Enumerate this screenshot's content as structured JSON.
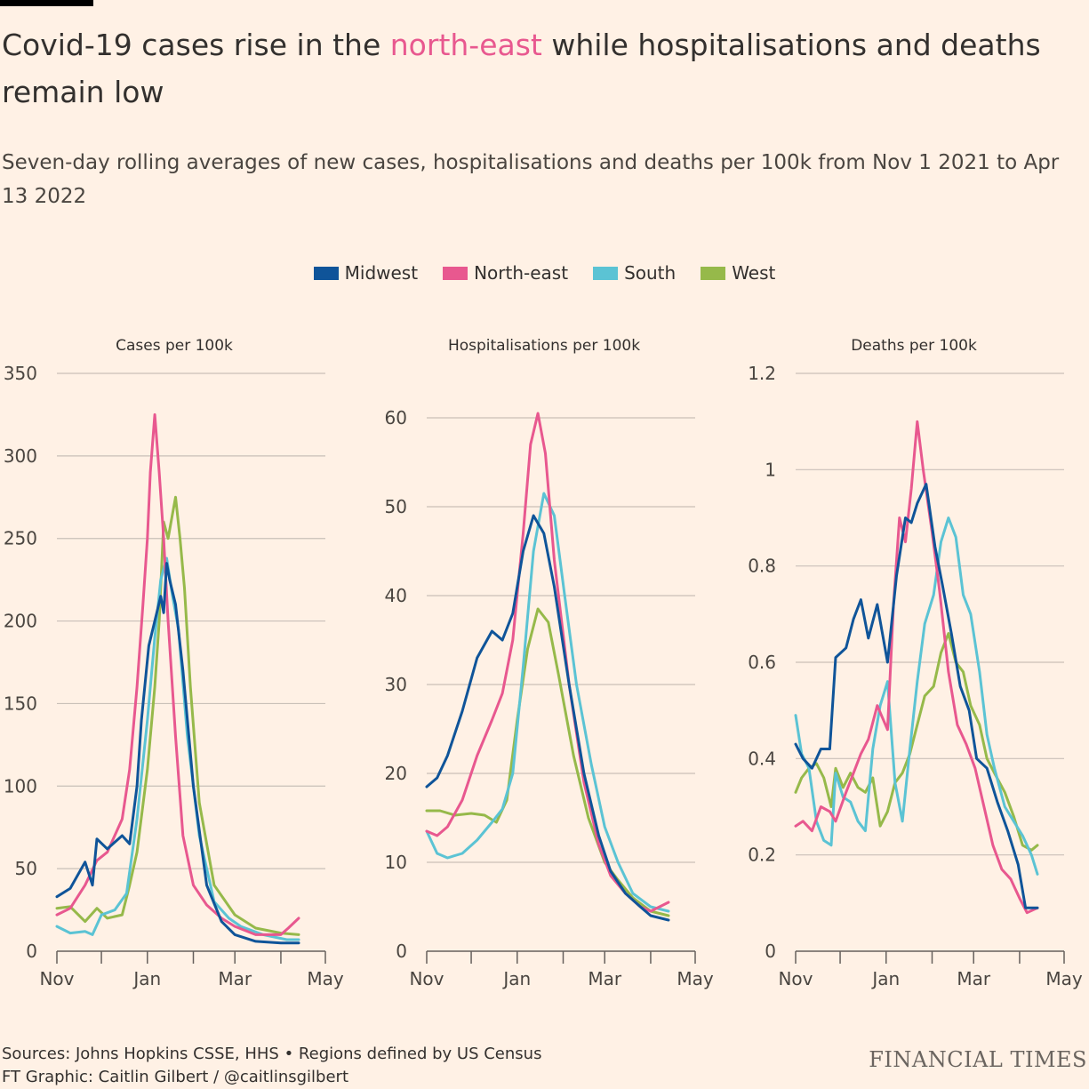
{
  "header": {
    "title_before": "Covid-19 cases rise in the ",
    "title_highlight": "north-east",
    "title_after": " while hospitalisations and deaths remain low",
    "subtitle": "Seven-day rolling averages of new cases, hospitalisations and deaths per 100k from Nov 1 2021 to Apr 13 2022"
  },
  "legend": [
    {
      "name": "Midwest",
      "color": "#0f5499"
    },
    {
      "name": "North-east",
      "color": "#e8588f"
    },
    {
      "name": "South",
      "color": "#5bc3d4"
    },
    {
      "name": "West",
      "color": "#96b94a"
    }
  ],
  "footer": {
    "sources": "Sources: Johns Hopkins CSSE, HHS • Regions defined by US Census",
    "credit": "FT Graphic: Caitlin Gilbert / @caitlinsgilbert",
    "brand": "FINANCIAL TIMES"
  },
  "chart_data": [
    {
      "type": "line",
      "title": "Cases per 100k",
      "x_ticks": [
        "Nov",
        "Jan",
        "Mar",
        "May"
      ],
      "x_tick_dates": [
        "2021-11-01",
        "2022-01-01",
        "2022-03-01",
        "2022-05-01"
      ],
      "ylim": [
        0,
        350
      ],
      "y_ticks": [
        0,
        50,
        100,
        150,
        200,
        250,
        300,
        350
      ],
      "grid": true,
      "series": [
        {
          "name": "Midwest",
          "x": [
            "2021-11-01",
            "2021-11-10",
            "2021-11-20",
            "2021-11-25",
            "2021-11-28",
            "2021-12-05",
            "2021-12-15",
            "2021-12-20",
            "2021-12-25",
            "2021-12-28",
            "2022-01-02",
            "2022-01-06",
            "2022-01-10",
            "2022-01-12",
            "2022-01-14",
            "2022-01-16",
            "2022-01-20",
            "2022-01-25",
            "2022-02-01",
            "2022-02-10",
            "2022-02-20",
            "2022-03-01",
            "2022-03-15",
            "2022-04-01",
            "2022-04-13"
          ],
          "y": [
            33,
            38,
            54,
            40,
            68,
            62,
            70,
            65,
            100,
            140,
            185,
            200,
            215,
            205,
            235,
            225,
            210,
            170,
            100,
            40,
            18,
            10,
            6,
            5,
            5
          ]
        },
        {
          "name": "North-east",
          "x": [
            "2021-11-01",
            "2021-11-10",
            "2021-11-20",
            "2021-11-28",
            "2021-12-05",
            "2021-12-15",
            "2021-12-20",
            "2021-12-25",
            "2021-12-29",
            "2022-01-01",
            "2022-01-03",
            "2022-01-06",
            "2022-01-09",
            "2022-01-12",
            "2022-01-15",
            "2022-01-20",
            "2022-01-25",
            "2022-02-01",
            "2022-02-10",
            "2022-02-20",
            "2022-03-01",
            "2022-03-15",
            "2022-04-01",
            "2022-04-06",
            "2022-04-13"
          ],
          "y": [
            22,
            26,
            40,
            55,
            60,
            80,
            110,
            160,
            210,
            250,
            290,
            325,
            290,
            250,
            200,
            130,
            70,
            40,
            28,
            20,
            15,
            10,
            10,
            14,
            20
          ]
        },
        {
          "name": "South",
          "x": [
            "2021-11-01",
            "2021-11-10",
            "2021-11-20",
            "2021-11-25",
            "2021-12-01",
            "2021-12-10",
            "2021-12-18",
            "2021-12-25",
            "2022-01-01",
            "2022-01-06",
            "2022-01-10",
            "2022-01-14",
            "2022-01-18",
            "2022-01-22",
            "2022-01-28",
            "2022-02-05",
            "2022-02-15",
            "2022-02-25",
            "2022-03-05",
            "2022-03-20",
            "2022-04-05",
            "2022-04-13"
          ],
          "y": [
            15,
            11,
            12,
            10,
            22,
            25,
            35,
            80,
            140,
            190,
            225,
            238,
            215,
            195,
            130,
            70,
            30,
            20,
            15,
            10,
            7,
            7
          ]
        },
        {
          "name": "West",
          "x": [
            "2021-11-01",
            "2021-11-10",
            "2021-11-20",
            "2021-11-28",
            "2021-12-05",
            "2021-12-15",
            "2021-12-20",
            "2021-12-25",
            "2022-01-01",
            "2022-01-06",
            "2022-01-09",
            "2022-01-12",
            "2022-01-15",
            "2022-01-18",
            "2022-01-20",
            "2022-01-23",
            "2022-01-26",
            "2022-01-30",
            "2022-02-05",
            "2022-02-15",
            "2022-03-01",
            "2022-03-15",
            "2022-04-01",
            "2022-04-13"
          ],
          "y": [
            26,
            27,
            18,
            26,
            20,
            22,
            40,
            60,
            110,
            160,
            200,
            260,
            250,
            265,
            275,
            250,
            220,
            160,
            90,
            40,
            22,
            14,
            11,
            10
          ]
        }
      ]
    },
    {
      "type": "line",
      "title": "Hospitalisations per 100k",
      "x_ticks": [
        "Nov",
        "Jan",
        "Mar",
        "May"
      ],
      "x_tick_dates": [
        "2021-11-01",
        "2022-01-01",
        "2022-03-01",
        "2022-05-01"
      ],
      "ylim": [
        0,
        65
      ],
      "y_ticks": [
        0,
        10,
        20,
        30,
        40,
        50,
        60
      ],
      "grid": true,
      "series": [
        {
          "name": "Midwest",
          "x": [
            "2021-11-01",
            "2021-11-08",
            "2021-11-15",
            "2021-11-25",
            "2021-12-05",
            "2021-12-15",
            "2021-12-22",
            "2021-12-29",
            "2022-01-05",
            "2022-01-12",
            "2022-01-19",
            "2022-01-26",
            "2022-02-05",
            "2022-02-15",
            "2022-02-25",
            "2022-03-05",
            "2022-03-15",
            "2022-03-25",
            "2022-04-01",
            "2022-04-13"
          ],
          "y": [
            18.5,
            19.5,
            22,
            27,
            33,
            36,
            35,
            38,
            45,
            49,
            47,
            41,
            30,
            20,
            13,
            9,
            6.5,
            5,
            4,
            3.5
          ]
        },
        {
          "name": "North-east",
          "x": [
            "2021-11-01",
            "2021-11-08",
            "2021-11-15",
            "2021-11-25",
            "2021-12-05",
            "2021-12-15",
            "2021-12-22",
            "2021-12-29",
            "2022-01-05",
            "2022-01-10",
            "2022-01-15",
            "2022-01-20",
            "2022-01-26",
            "2022-02-05",
            "2022-02-15",
            "2022-02-25",
            "2022-03-05",
            "2022-03-15",
            "2022-03-25",
            "2022-04-01",
            "2022-04-13"
          ],
          "y": [
            13.5,
            13,
            14,
            17,
            22,
            26,
            29,
            35,
            47,
            57,
            60.5,
            56,
            44,
            30,
            19,
            12,
            8.5,
            6.5,
            5,
            4.5,
            5.5
          ]
        },
        {
          "name": "South",
          "x": [
            "2021-11-01",
            "2021-11-08",
            "2021-11-15",
            "2021-11-25",
            "2021-12-05",
            "2021-12-15",
            "2021-12-22",
            "2021-12-29",
            "2022-01-05",
            "2022-01-12",
            "2022-01-19",
            "2022-01-26",
            "2022-02-02",
            "2022-02-10",
            "2022-02-20",
            "2022-03-01",
            "2022-03-10",
            "2022-03-20",
            "2022-04-01",
            "2022-04-13"
          ],
          "y": [
            13.5,
            11,
            10.5,
            11,
            12.5,
            14.5,
            16,
            20,
            32,
            45,
            51.5,
            49,
            40,
            30,
            21,
            14,
            10,
            6.5,
            5,
            4.5
          ]
        },
        {
          "name": "West",
          "x": [
            "2021-11-01",
            "2021-11-10",
            "2021-11-20",
            "2021-12-01",
            "2021-12-10",
            "2021-12-18",
            "2021-12-25",
            "2022-01-01",
            "2022-01-08",
            "2022-01-15",
            "2022-01-22",
            "2022-01-29",
            "2022-02-08",
            "2022-02-18",
            "2022-03-01",
            "2022-03-10",
            "2022-03-20",
            "2022-04-01",
            "2022-04-13"
          ],
          "y": [
            15.8,
            15.8,
            15.3,
            15.5,
            15.3,
            14.5,
            17,
            26,
            34,
            38.5,
            37,
            31,
            22,
            15,
            10,
            8,
            6,
            4.5,
            4
          ]
        }
      ]
    },
    {
      "type": "line",
      "title": "Deaths per 100k",
      "x_ticks": [
        "Nov",
        "Jan",
        "Mar",
        "May"
      ],
      "x_tick_dates": [
        "2021-11-01",
        "2022-01-01",
        "2022-03-01",
        "2022-05-01"
      ],
      "ylim": [
        0,
        1.2
      ],
      "y_ticks": [
        0,
        0.2,
        0.4,
        0.6,
        0.8,
        1,
        1.2
      ],
      "y_tick_labels": [
        "0",
        "0.2",
        "0.4",
        "0.6",
        "0.8",
        "1",
        "1.2"
      ],
      "grid": true,
      "series": [
        {
          "name": "Midwest",
          "x": [
            "2021-11-01",
            "2021-11-06",
            "2021-11-12",
            "2021-11-18",
            "2021-11-24",
            "2021-11-28",
            "2021-12-05",
            "2021-12-10",
            "2021-12-15",
            "2021-12-20",
            "2021-12-26",
            "2022-01-02",
            "2022-01-08",
            "2022-01-14",
            "2022-01-18",
            "2022-01-22",
            "2022-01-28",
            "2022-02-03",
            "2022-02-08",
            "2022-02-14",
            "2022-02-20",
            "2022-02-26",
            "2022-03-03",
            "2022-03-10",
            "2022-03-17",
            "2022-03-24",
            "2022-03-31",
            "2022-04-05",
            "2022-04-13"
          ],
          "y": [
            0.43,
            0.4,
            0.38,
            0.42,
            0.42,
            0.61,
            0.63,
            0.69,
            0.73,
            0.65,
            0.72,
            0.6,
            0.78,
            0.9,
            0.89,
            0.93,
            0.97,
            0.84,
            0.76,
            0.66,
            0.55,
            0.5,
            0.4,
            0.38,
            0.31,
            0.25,
            0.18,
            0.09,
            0.09
          ]
        },
        {
          "name": "North-east",
          "x": [
            "2021-11-01",
            "2021-11-06",
            "2021-11-12",
            "2021-11-18",
            "2021-11-24",
            "2021-11-28",
            "2021-12-05",
            "2021-12-10",
            "2021-12-15",
            "2021-12-20",
            "2021-12-26",
            "2022-01-02",
            "2022-01-06",
            "2022-01-10",
            "2022-01-14",
            "2022-01-18",
            "2022-01-22",
            "2022-01-26",
            "2022-02-01",
            "2022-02-06",
            "2022-02-12",
            "2022-02-18",
            "2022-02-24",
            "2022-03-02",
            "2022-03-08",
            "2022-03-14",
            "2022-03-20",
            "2022-03-26",
            "2022-04-01",
            "2022-04-06",
            "2022-04-13"
          ],
          "y": [
            0.26,
            0.27,
            0.25,
            0.3,
            0.29,
            0.27,
            0.33,
            0.37,
            0.41,
            0.44,
            0.51,
            0.46,
            0.72,
            0.9,
            0.85,
            0.96,
            1.1,
            1.0,
            0.87,
            0.75,
            0.58,
            0.47,
            0.43,
            0.38,
            0.3,
            0.22,
            0.17,
            0.15,
            0.11,
            0.08,
            0.09
          ]
        },
        {
          "name": "South",
          "x": [
            "2021-11-01",
            "2021-11-05",
            "2021-11-10",
            "2021-11-15",
            "2021-11-20",
            "2021-11-25",
            "2021-11-28",
            "2021-12-03",
            "2021-12-08",
            "2021-12-13",
            "2021-12-18",
            "2021-12-23",
            "2021-12-28",
            "2022-01-02",
            "2022-01-07",
            "2022-01-12",
            "2022-01-17",
            "2022-01-22",
            "2022-01-27",
            "2022-02-02",
            "2022-02-07",
            "2022-02-12",
            "2022-02-17",
            "2022-02-22",
            "2022-02-27",
            "2022-03-05",
            "2022-03-10",
            "2022-03-15",
            "2022-03-22",
            "2022-03-28",
            "2022-04-03",
            "2022-04-09",
            "2022-04-13"
          ],
          "y": [
            0.49,
            0.41,
            0.38,
            0.27,
            0.23,
            0.22,
            0.37,
            0.32,
            0.31,
            0.27,
            0.25,
            0.42,
            0.51,
            0.56,
            0.35,
            0.27,
            0.42,
            0.56,
            0.68,
            0.74,
            0.85,
            0.9,
            0.86,
            0.74,
            0.7,
            0.58,
            0.45,
            0.38,
            0.3,
            0.27,
            0.24,
            0.2,
            0.16
          ]
        },
        {
          "name": "West",
          "x": [
            "2021-11-01",
            "2021-11-05",
            "2021-11-10",
            "2021-11-15",
            "2021-11-20",
            "2021-11-25",
            "2021-11-28",
            "2021-12-03",
            "2021-12-08",
            "2021-12-13",
            "2021-12-18",
            "2021-12-23",
            "2021-12-28",
            "2022-01-02",
            "2022-01-07",
            "2022-01-12",
            "2022-01-17",
            "2022-01-22",
            "2022-01-27",
            "2022-02-02",
            "2022-02-07",
            "2022-02-12",
            "2022-02-17",
            "2022-02-22",
            "2022-02-27",
            "2022-03-05",
            "2022-03-10",
            "2022-03-15",
            "2022-03-22",
            "2022-03-28",
            "2022-04-03",
            "2022-04-09",
            "2022-04-13"
          ],
          "y": [
            0.33,
            0.36,
            0.38,
            0.39,
            0.36,
            0.3,
            0.38,
            0.34,
            0.37,
            0.34,
            0.33,
            0.36,
            0.26,
            0.29,
            0.35,
            0.37,
            0.41,
            0.47,
            0.53,
            0.55,
            0.62,
            0.66,
            0.6,
            0.58,
            0.51,
            0.47,
            0.4,
            0.37,
            0.33,
            0.28,
            0.22,
            0.21,
            0.22
          ]
        }
      ]
    }
  ]
}
